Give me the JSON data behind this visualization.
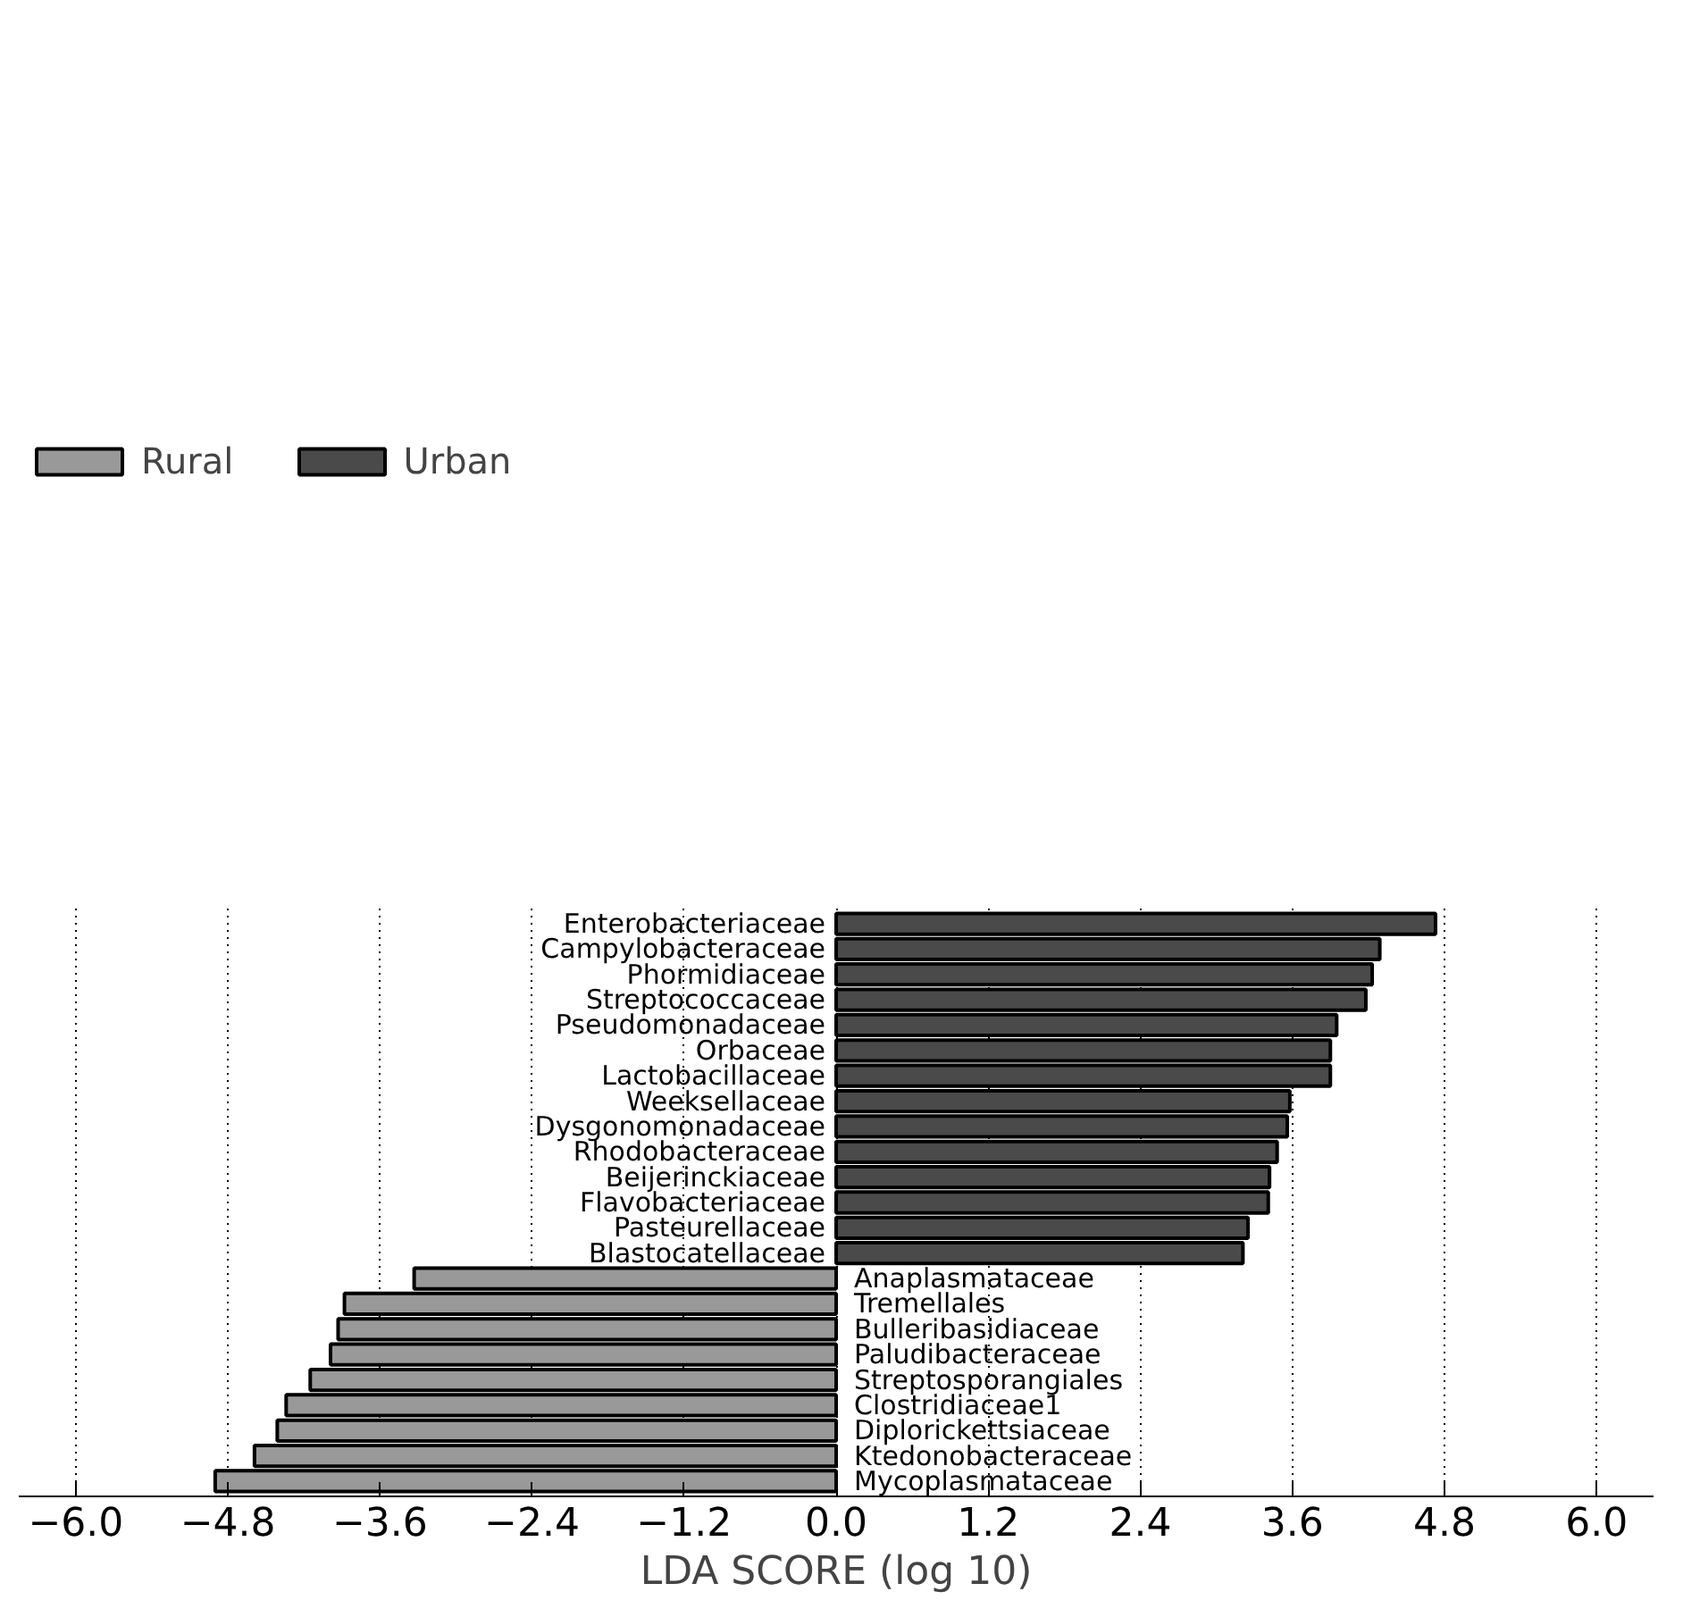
{
  "chart_data": {
    "type": "bar",
    "orientation": "horizontal",
    "xlabel": "LDA SCORE (log 10)",
    "categories": [
      "Enterobacteriaceae",
      "Campylobacteraceae",
      "Phormidiaceae",
      "Streptococcaceae",
      "Pseudomonadaceae",
      "Orbaceae",
      "Lactobacillaceae",
      "Weeksellaceae",
      "Dysgonomonadaceae",
      "Rhodobacteraceae",
      "Beijerinckiaceae",
      "Flavobacteriaceae",
      "Pasteurellaceae",
      "Blastocatellaceae",
      "Anaplasmataceae",
      "Tremellales",
      "Bulleribasidiaceae",
      "Paludibacteraceae",
      "Streptosporangiales",
      "Clostridiaceae1",
      "Diplorickettsiaceae",
      "Ktedonobacteraceae",
      "Mycoplasmataceae"
    ],
    "series": [
      {
        "name": "Rural",
        "color": "#999999",
        "values": [
          null,
          null,
          null,
          null,
          null,
          null,
          null,
          null,
          null,
          null,
          null,
          null,
          null,
          null,
          -3.33,
          -3.88,
          -3.93,
          -3.99,
          -4.15,
          -4.34,
          -4.41,
          -4.59,
          -4.9
        ]
      },
      {
        "name": "Urban",
        "color": "#4a4a4a",
        "values": [
          4.73,
          4.29,
          4.23,
          4.18,
          3.95,
          3.9,
          3.9,
          3.58,
          3.56,
          3.48,
          3.42,
          3.41,
          3.25,
          3.21,
          null,
          null,
          null,
          null,
          null,
          null,
          null,
          null,
          null
        ]
      }
    ],
    "xlim": [
      -6.45,
      6.45
    ],
    "xticks": [
      {
        "value": -6.0,
        "label": "−6.0"
      },
      {
        "value": -4.8,
        "label": "−4.8"
      },
      {
        "value": -3.6,
        "label": "−3.6"
      },
      {
        "value": -2.4,
        "label": "−2.4"
      },
      {
        "value": -1.2,
        "label": "−1.2"
      },
      {
        "value": 0,
        "label": "0.0"
      },
      {
        "value": 1.2,
        "label": "1.2"
      },
      {
        "value": 2.4,
        "label": "2.4"
      },
      {
        "value": 3.6,
        "label": "3.6"
      },
      {
        "value": 4.8,
        "label": "4.8"
      },
      {
        "value": 6.0,
        "label": "6.0"
      }
    ],
    "grid": "x",
    "legend": "top left",
    "tick_labels": "x"
  }
}
